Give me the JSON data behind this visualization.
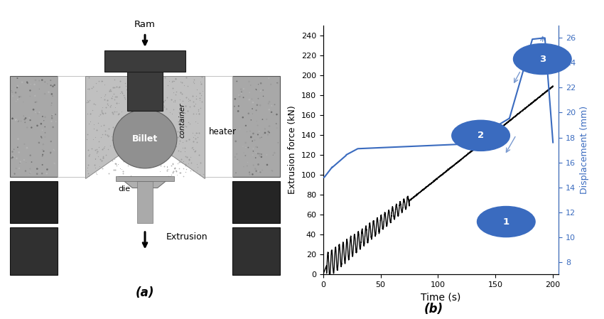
{
  "fig_width": 8.5,
  "fig_height": 4.49,
  "bg_color": "#ffffff",
  "diagram_labels": {
    "ram": "Ram",
    "billet": "Billet",
    "container": "container",
    "heater": "heater",
    "die": "die",
    "extrusion": "Extrusion",
    "a_label": "(a)",
    "b_label": "(b)"
  },
  "plot": {
    "xlabel": "Time (s)",
    "ylabel_left": "Extrusion force (kN)",
    "ylabel_right": "Displacement (mm)",
    "xlim": [
      0,
      205
    ],
    "ylim_left": [
      0,
      250
    ],
    "ylim_right": [
      7,
      27
    ],
    "xticks": [
      0,
      50,
      100,
      150,
      200
    ],
    "yticks_left": [
      0,
      20,
      40,
      60,
      80,
      100,
      120,
      140,
      160,
      180,
      200,
      220,
      240
    ],
    "yticks_right": [
      8,
      10,
      12,
      14,
      16,
      18,
      20,
      22,
      24,
      26
    ],
    "annotation_color": "#3a6bbf",
    "line_color_force": "#000000",
    "line_color_disp": "#3a6bbf"
  }
}
